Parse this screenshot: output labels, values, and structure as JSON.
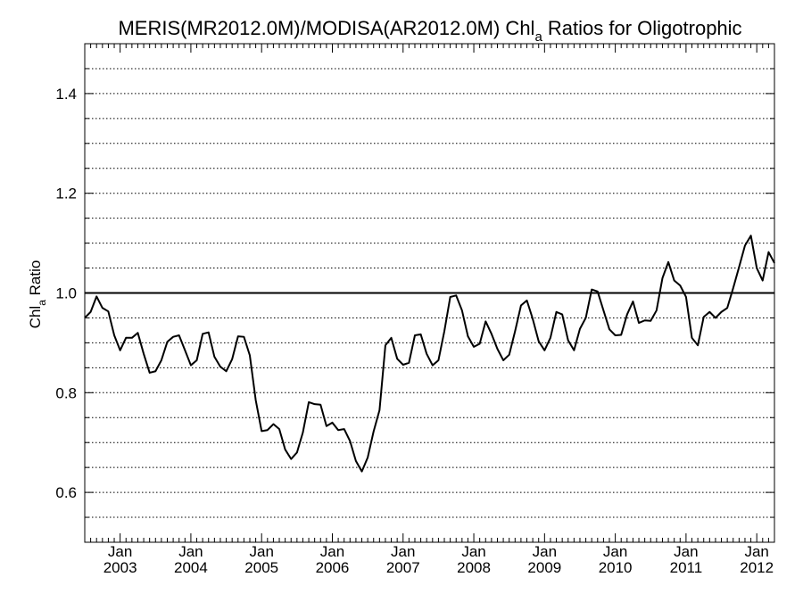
{
  "chart_data": {
    "type": "line",
    "title_main": "MERIS(MR2012.0M)/MODISA(AR2012.0M)  Chl",
    "title_sub": "a",
    "title_tail": " Ratios for Oligotrophic",
    "ylabel_main": "Chl",
    "ylabel_sub": "a",
    "ylabel_tail": " Ratio",
    "xlim": [
      2002.5,
      2012.25
    ],
    "ylim": [
      0.5,
      1.5
    ],
    "grid": "dotted horizontal every 0.05",
    "reference_line": 1.0,
    "y_ticks": [
      {
        "value": 0.6,
        "label": "0.6"
      },
      {
        "value": 0.8,
        "label": "0.8"
      },
      {
        "value": 1.0,
        "label": "1.0"
      },
      {
        "value": 1.2,
        "label": "1.2"
      },
      {
        "value": 1.4,
        "label": "1.4"
      }
    ],
    "x_ticks": [
      {
        "value": 2003,
        "month": "Jan",
        "year": "2003"
      },
      {
        "value": 2004,
        "month": "Jan",
        "year": "2004"
      },
      {
        "value": 2005,
        "month": "Jan",
        "year": "2005"
      },
      {
        "value": 2006,
        "month": "Jan",
        "year": "2006"
      },
      {
        "value": 2007,
        "month": "Jan",
        "year": "2007"
      },
      {
        "value": 2008,
        "month": "Jan",
        "year": "2008"
      },
      {
        "value": 2009,
        "month": "Jan",
        "year": "2009"
      },
      {
        "value": 2010,
        "month": "Jan",
        "year": "2010"
      },
      {
        "value": 2011,
        "month": "Jan",
        "year": "2011"
      },
      {
        "value": 2012,
        "month": "Jan",
        "year": "2012"
      }
    ],
    "series": [
      {
        "color": "#000000",
        "points": [
          [
            2002.5,
            0.95
          ],
          [
            2002.583,
            0.962
          ],
          [
            2002.667,
            0.993
          ],
          [
            2002.75,
            0.97
          ],
          [
            2002.833,
            0.963
          ],
          [
            2002.917,
            0.915
          ],
          [
            2003.0,
            0.885
          ],
          [
            2003.083,
            0.91
          ],
          [
            2003.167,
            0.91
          ],
          [
            2003.25,
            0.92
          ],
          [
            2003.333,
            0.878
          ],
          [
            2003.417,
            0.84
          ],
          [
            2003.5,
            0.843
          ],
          [
            2003.583,
            0.865
          ],
          [
            2003.667,
            0.902
          ],
          [
            2003.75,
            0.912
          ],
          [
            2003.833,
            0.915
          ],
          [
            2003.917,
            0.885
          ],
          [
            2004.0,
            0.855
          ],
          [
            2004.083,
            0.865
          ],
          [
            2004.167,
            0.918
          ],
          [
            2004.25,
            0.921
          ],
          [
            2004.333,
            0.872
          ],
          [
            2004.417,
            0.852
          ],
          [
            2004.5,
            0.843
          ],
          [
            2004.583,
            0.867
          ],
          [
            2004.667,
            0.913
          ],
          [
            2004.75,
            0.912
          ],
          [
            2004.833,
            0.875
          ],
          [
            2004.917,
            0.785
          ],
          [
            2005.0,
            0.723
          ],
          [
            2005.083,
            0.725
          ],
          [
            2005.167,
            0.737
          ],
          [
            2005.25,
            0.727
          ],
          [
            2005.333,
            0.686
          ],
          [
            2005.417,
            0.667
          ],
          [
            2005.5,
            0.68
          ],
          [
            2005.583,
            0.72
          ],
          [
            2005.667,
            0.781
          ],
          [
            2005.75,
            0.777
          ],
          [
            2005.833,
            0.776
          ],
          [
            2005.917,
            0.733
          ],
          [
            2006.0,
            0.74
          ],
          [
            2006.083,
            0.725
          ],
          [
            2006.167,
            0.727
          ],
          [
            2006.25,
            0.703
          ],
          [
            2006.333,
            0.663
          ],
          [
            2006.417,
            0.642
          ],
          [
            2006.5,
            0.67
          ],
          [
            2006.583,
            0.722
          ],
          [
            2006.667,
            0.765
          ],
          [
            2006.75,
            0.895
          ],
          [
            2006.833,
            0.91
          ],
          [
            2006.917,
            0.868
          ],
          [
            2007.0,
            0.856
          ],
          [
            2007.083,
            0.86
          ],
          [
            2007.167,
            0.915
          ],
          [
            2007.25,
            0.917
          ],
          [
            2007.333,
            0.878
          ],
          [
            2007.417,
            0.855
          ],
          [
            2007.5,
            0.865
          ],
          [
            2007.583,
            0.923
          ],
          [
            2007.667,
            0.992
          ],
          [
            2007.75,
            0.995
          ],
          [
            2007.833,
            0.965
          ],
          [
            2007.917,
            0.913
          ],
          [
            2008.0,
            0.892
          ],
          [
            2008.083,
            0.898
          ],
          [
            2008.167,
            0.943
          ],
          [
            2008.25,
            0.918
          ],
          [
            2008.333,
            0.888
          ],
          [
            2008.417,
            0.865
          ],
          [
            2008.5,
            0.876
          ],
          [
            2008.583,
            0.923
          ],
          [
            2008.667,
            0.975
          ],
          [
            2008.75,
            0.985
          ],
          [
            2008.833,
            0.948
          ],
          [
            2008.917,
            0.903
          ],
          [
            2009.0,
            0.885
          ],
          [
            2009.083,
            0.91
          ],
          [
            2009.167,
            0.962
          ],
          [
            2009.25,
            0.957
          ],
          [
            2009.333,
            0.905
          ],
          [
            2009.417,
            0.885
          ],
          [
            2009.5,
            0.928
          ],
          [
            2009.583,
            0.95
          ],
          [
            2009.667,
            1.007
          ],
          [
            2009.75,
            1.003
          ],
          [
            2009.833,
            0.965
          ],
          [
            2009.917,
            0.927
          ],
          [
            2010.0,
            0.915
          ],
          [
            2010.083,
            0.916
          ],
          [
            2010.167,
            0.957
          ],
          [
            2010.25,
            0.983
          ],
          [
            2010.333,
            0.94
          ],
          [
            2010.417,
            0.945
          ],
          [
            2010.5,
            0.944
          ],
          [
            2010.583,
            0.965
          ],
          [
            2010.667,
            1.03
          ],
          [
            2010.75,
            1.062
          ],
          [
            2010.833,
            1.025
          ],
          [
            2010.917,
            1.015
          ],
          [
            2011.0,
            0.992
          ],
          [
            2011.083,
            0.91
          ],
          [
            2011.167,
            0.895
          ],
          [
            2011.25,
            0.952
          ],
          [
            2011.333,
            0.962
          ],
          [
            2011.417,
            0.95
          ],
          [
            2011.5,
            0.962
          ],
          [
            2011.583,
            0.97
          ],
          [
            2011.667,
            1.01
          ],
          [
            2011.75,
            1.052
          ],
          [
            2011.833,
            1.095
          ],
          [
            2011.917,
            1.115
          ],
          [
            2012.0,
            1.05
          ],
          [
            2012.083,
            1.025
          ],
          [
            2012.167,
            1.082
          ],
          [
            2012.25,
            1.06
          ]
        ]
      }
    ]
  }
}
